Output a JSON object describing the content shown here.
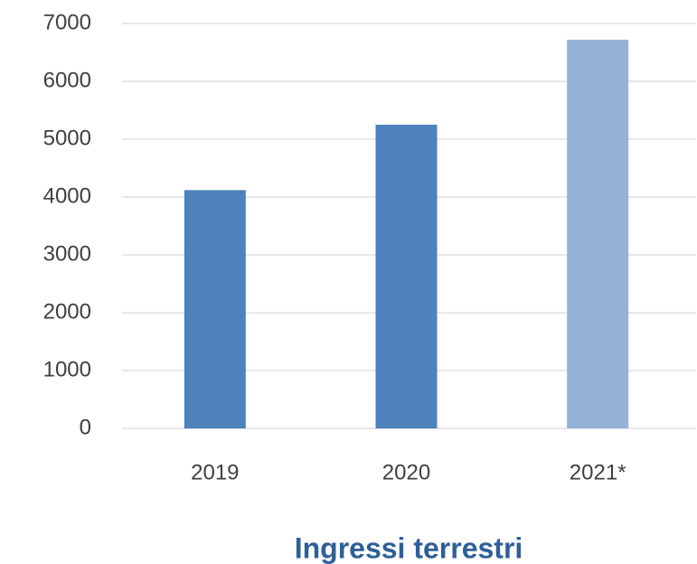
{
  "chart_data": {
    "type": "bar",
    "title": "Ingressi terrestri",
    "categories": [
      "2019",
      "2020",
      "2021*"
    ],
    "values": [
      4120,
      5250,
      6720
    ],
    "colors": [
      "#4f81bd",
      "#4f81bd",
      "#95b3d7"
    ],
    "ylim": [
      0,
      7000
    ],
    "yticks": [
      0,
      1000,
      2000,
      3000,
      4000,
      5000,
      6000,
      7000
    ],
    "grid": true
  }
}
